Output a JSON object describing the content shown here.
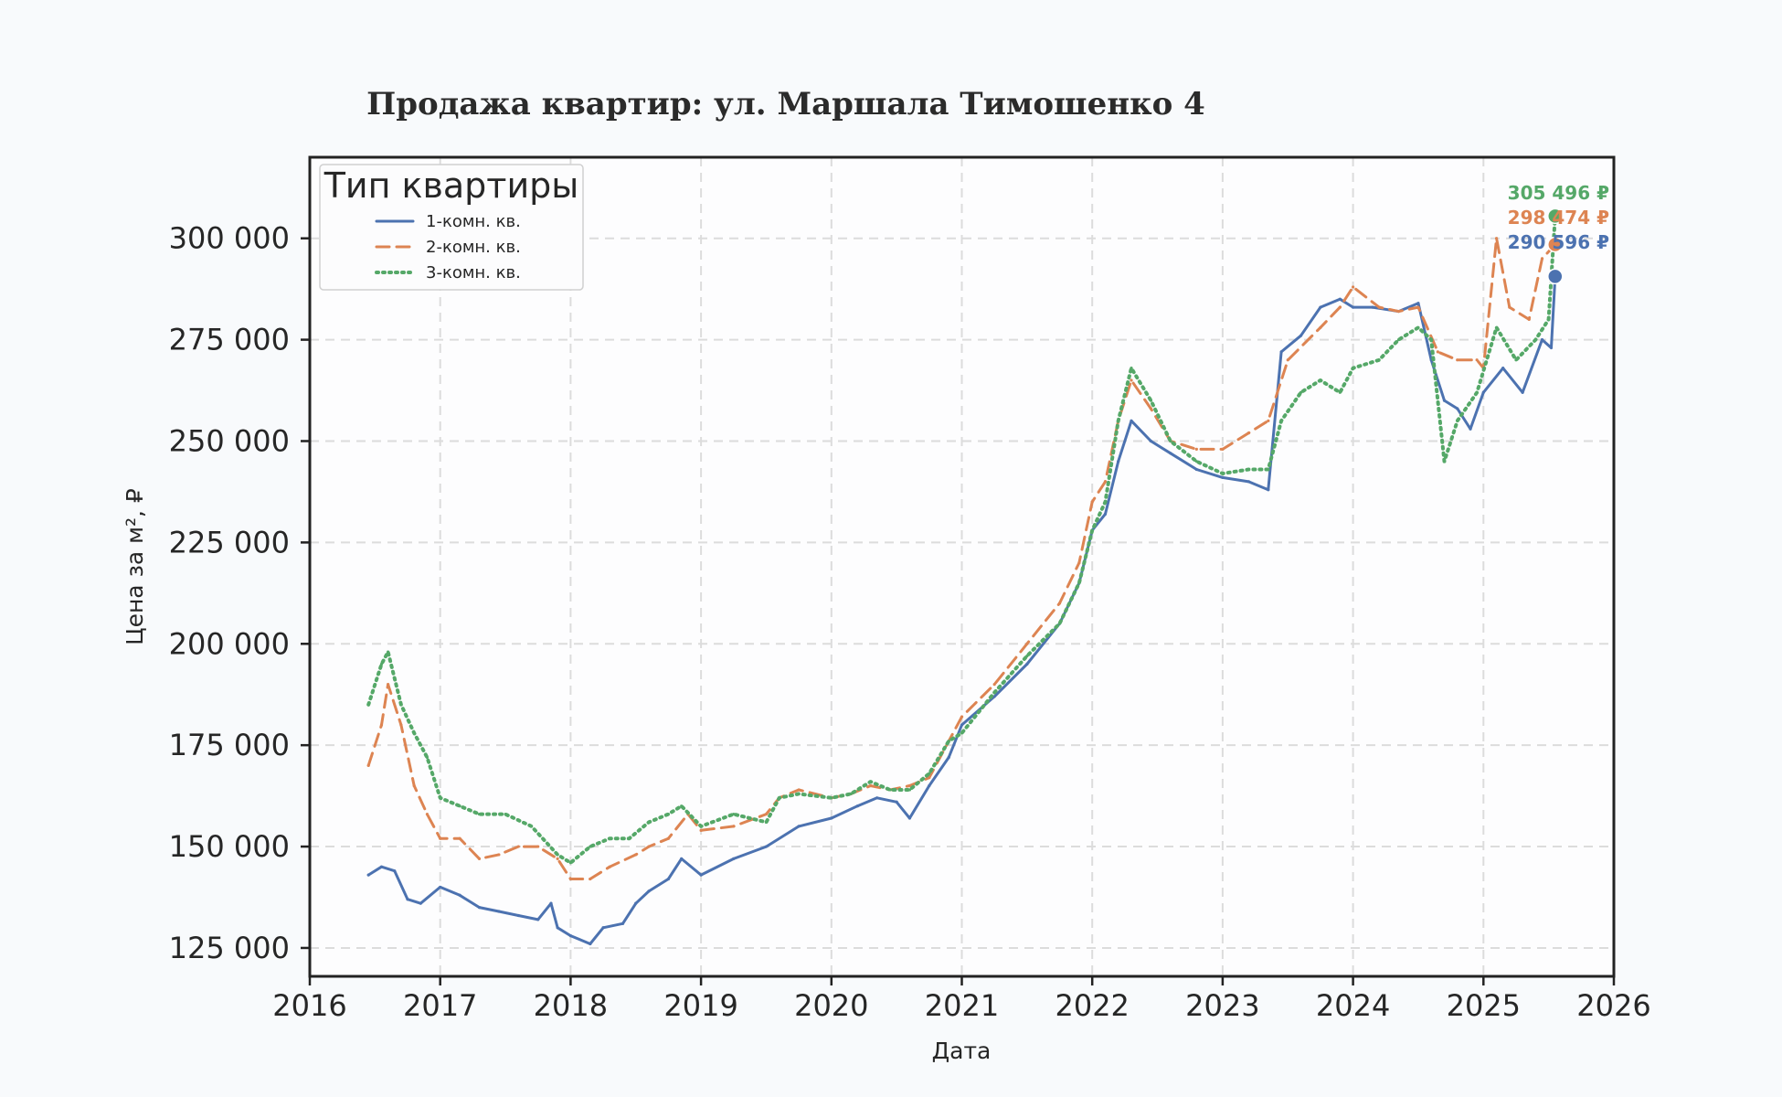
{
  "chart_data": {
    "type": "line",
    "title": "Продажа квартир: ул. Маршала Тимошенко 4",
    "xlabel": "Дата",
    "ylabel": "Цена за м², ₽",
    "xlim": [
      2016,
      2026
    ],
    "ylim": [
      118000,
      320000
    ],
    "x_ticks": [
      "2016",
      "2017",
      "2018",
      "2019",
      "2020",
      "2021",
      "2022",
      "2023",
      "2024",
      "2025",
      "2026"
    ],
    "y_ticks": [
      125000,
      150000,
      175000,
      200000,
      225000,
      250000,
      275000,
      300000
    ],
    "y_tick_labels": [
      "125 000",
      "150 000",
      "175 000",
      "200 000",
      "225 000",
      "250 000",
      "275 000",
      "300 000"
    ],
    "grid": true,
    "legend_title": "Тип квартиры",
    "legend_position": "top-left",
    "series": [
      {
        "name": "1-комн. кв.",
        "color": "#4c72b0",
        "style": "solid",
        "x": [
          2016.45,
          2016.55,
          2016.65,
          2016.75,
          2016.85,
          2017.0,
          2017.15,
          2017.3,
          2017.45,
          2017.6,
          2017.75,
          2017.85,
          2017.9,
          2018.0,
          2018.15,
          2018.25,
          2018.4,
          2018.5,
          2018.6,
          2018.75,
          2018.85,
          2019.0,
          2019.25,
          2019.5,
          2019.75,
          2020.0,
          2020.2,
          2020.35,
          2020.5,
          2020.6,
          2020.75,
          2020.9,
          2021.0,
          2021.25,
          2021.5,
          2021.75,
          2021.9,
          2022.0,
          2022.1,
          2022.2,
          2022.3,
          2022.45,
          2022.6,
          2022.8,
          2023.0,
          2023.2,
          2023.35,
          2023.45,
          2023.6,
          2023.75,
          2023.9,
          2024.0,
          2024.15,
          2024.35,
          2024.5,
          2024.6,
          2024.7,
          2024.8,
          2024.9,
          2025.0,
          2025.15,
          2025.3,
          2025.45,
          2025.52,
          2025.55
        ],
        "values": [
          143000,
          145000,
          144000,
          137000,
          136000,
          140000,
          138000,
          135000,
          134000,
          133000,
          132000,
          136000,
          130000,
          128000,
          126000,
          130000,
          131000,
          136000,
          139000,
          142000,
          147000,
          143000,
          147000,
          150000,
          155000,
          157000,
          160000,
          162000,
          161000,
          157000,
          165000,
          172000,
          180000,
          187000,
          195000,
          205000,
          215000,
          228000,
          232000,
          245000,
          255000,
          250000,
          247000,
          243000,
          241000,
          240000,
          238000,
          272000,
          276000,
          283000,
          285000,
          283000,
          283000,
          282000,
          284000,
          270000,
          260000,
          258000,
          253000,
          262000,
          268000,
          262000,
          275000,
          273000,
          290596
        ]
      },
      {
        "name": "2-комн. кв.",
        "color": "#dd8452",
        "style": "dashed",
        "x": [
          2016.45,
          2016.55,
          2016.6,
          2016.7,
          2016.8,
          2016.9,
          2017.0,
          2017.15,
          2017.3,
          2017.45,
          2017.6,
          2017.75,
          2017.9,
          2018.0,
          2018.15,
          2018.3,
          2018.5,
          2018.6,
          2018.75,
          2018.9,
          2019.0,
          2019.25,
          2019.5,
          2019.6,
          2019.75,
          2020.0,
          2020.15,
          2020.3,
          2020.45,
          2020.6,
          2020.75,
          2020.9,
          2021.0,
          2021.25,
          2021.5,
          2021.75,
          2021.9,
          2022.0,
          2022.1,
          2022.2,
          2022.3,
          2022.45,
          2022.6,
          2022.8,
          2023.0,
          2023.2,
          2023.35,
          2023.5,
          2023.75,
          2023.9,
          2024.0,
          2024.2,
          2024.35,
          2024.5,
          2024.65,
          2024.8,
          2024.95,
          2025.0,
          2025.1,
          2025.2,
          2025.35,
          2025.45,
          2025.55
        ],
        "values": [
          170000,
          180000,
          190000,
          180000,
          165000,
          158000,
          152000,
          152000,
          147000,
          148000,
          150000,
          150000,
          147000,
          142000,
          142000,
          145000,
          148000,
          150000,
          152000,
          158000,
          154000,
          155000,
          158000,
          162000,
          164000,
          162000,
          163000,
          165000,
          164000,
          165000,
          167000,
          176000,
          182000,
          190000,
          200000,
          210000,
          220000,
          235000,
          240000,
          255000,
          265000,
          258000,
          250000,
          248000,
          248000,
          252000,
          255000,
          270000,
          278000,
          283000,
          288000,
          283000,
          282000,
          283000,
          272000,
          270000,
          270000,
          268000,
          300000,
          283000,
          280000,
          295000,
          298474
        ]
      },
      {
        "name": "3-комн. кв.",
        "color": "#55a868",
        "style": "dotted",
        "x": [
          2016.45,
          2016.55,
          2016.6,
          2016.7,
          2016.8,
          2016.9,
          2017.0,
          2017.15,
          2017.3,
          2017.5,
          2017.7,
          2017.9,
          2018.0,
          2018.15,
          2018.3,
          2018.45,
          2018.6,
          2018.75,
          2018.85,
          2019.0,
          2019.25,
          2019.5,
          2019.6,
          2019.75,
          2020.0,
          2020.15,
          2020.3,
          2020.45,
          2020.6,
          2020.75,
          2020.9,
          2021.0,
          2021.25,
          2021.5,
          2021.75,
          2021.9,
          2022.0,
          2022.1,
          2022.2,
          2022.3,
          2022.45,
          2022.6,
          2022.8,
          2023.0,
          2023.2,
          2023.35,
          2023.45,
          2023.6,
          2023.75,
          2023.9,
          2024.0,
          2024.2,
          2024.35,
          2024.5,
          2024.6,
          2024.7,
          2024.8,
          2024.95,
          2025.1,
          2025.25,
          2025.4,
          2025.5,
          2025.55
        ],
        "values": [
          185000,
          195000,
          198000,
          185000,
          178000,
          172000,
          162000,
          160000,
          158000,
          158000,
          155000,
          148000,
          146000,
          150000,
          152000,
          152000,
          156000,
          158000,
          160000,
          155000,
          158000,
          156000,
          162000,
          163000,
          162000,
          163000,
          166000,
          164000,
          164000,
          168000,
          176000,
          178000,
          188000,
          197000,
          205000,
          215000,
          228000,
          235000,
          255000,
          268000,
          260000,
          250000,
          245000,
          242000,
          243000,
          243000,
          255000,
          262000,
          265000,
          262000,
          268000,
          270000,
          275000,
          278000,
          275000,
          245000,
          255000,
          262000,
          278000,
          270000,
          275000,
          280000,
          305496
        ]
      }
    ],
    "end_values": [
      {
        "label": "305 496 ₽",
        "value": 305496,
        "color": "#55a868"
      },
      {
        "label": "298 474 ₽",
        "value": 298474,
        "color": "#dd8452"
      },
      {
        "label": "290 596 ₽",
        "value": 290596,
        "color": "#4c72b0"
      }
    ]
  }
}
